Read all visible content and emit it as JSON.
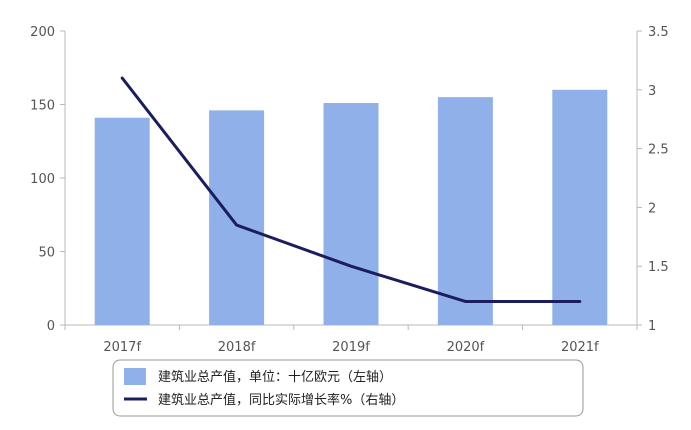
{
  "chart_data": {
    "type": "bar",
    "categories": [
      "2017f",
      "2018f",
      "2019f",
      "2020f",
      "2021f"
    ],
    "series": [
      {
        "name": "建筑业总产值，单位：十亿欧元（左轴）",
        "type": "bar",
        "axis": "left",
        "values": [
          141,
          146,
          151,
          155,
          160
        ],
        "color": "#8fb0e8"
      },
      {
        "name": "建筑业总产值，同比实际增长率%（右轴）",
        "type": "line",
        "axis": "right",
        "values": [
          3.1,
          1.85,
          1.5,
          1.2,
          1.2
        ],
        "color": "#1c1d5e"
      }
    ],
    "y_left": {
      "ylim": [
        0,
        200
      ],
      "ticks": [
        "0",
        "50",
        "100",
        "150",
        "200"
      ]
    },
    "y_right": {
      "ylim": [
        1,
        3.5
      ],
      "ticks": [
        "1",
        "1.5",
        "2",
        "2.5",
        "3",
        "3.5"
      ]
    },
    "grid": false,
    "legend_position": "bottom"
  }
}
